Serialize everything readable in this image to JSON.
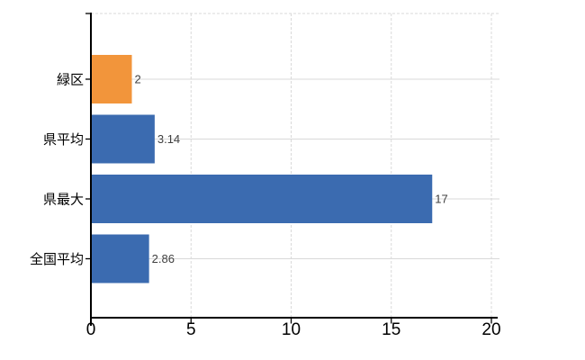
{
  "chart_data": {
    "type": "bar",
    "orientation": "horizontal",
    "title": "",
    "xlabel": "",
    "ylabel": "",
    "categories": [
      "緑区",
      "県平均",
      "県最大",
      "全国平均"
    ],
    "values": [
      2,
      3.14,
      17,
      2.86
    ],
    "value_labels": [
      "2",
      "3.14",
      "17",
      "2.86"
    ],
    "bar_colors": [
      "#F2953B",
      "#3B6BB0",
      "#3B6BB0",
      "#3B6BB0"
    ],
    "xlim": [
      0,
      20
    ],
    "xticks": [
      0,
      5,
      10,
      15,
      20
    ],
    "xtick_labels": [
      "0",
      "5",
      "10",
      "15",
      "20"
    ],
    "legend": "none",
    "grid": {
      "vertical_style": "dashed",
      "horizontal_style": "solid",
      "top_border_style": "dashed",
      "right_border_style": "dashed"
    },
    "colors": {
      "grid": "#D9D9D9",
      "axis": "#000000",
      "tick_label": "#000000",
      "category_label": "#000000",
      "value_label": "#404040",
      "background": "#FFFFFF"
    }
  }
}
